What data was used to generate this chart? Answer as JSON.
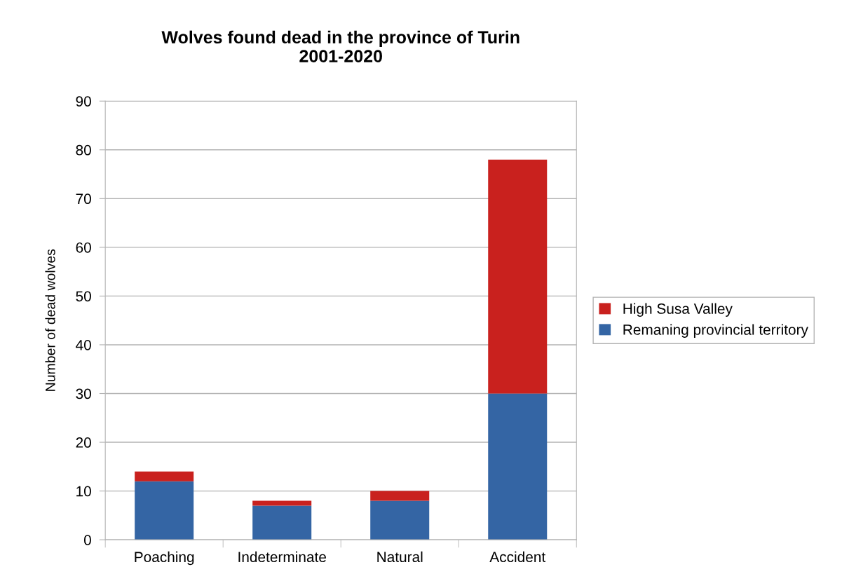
{
  "chart_data": {
    "type": "bar",
    "stacked": true,
    "title": "Wolves found dead in the province of Turin\n2001-2020",
    "ylabel": "Number of dead wolves",
    "categories": [
      "Poaching",
      "Indeterminate",
      "Natural",
      "Accident"
    ],
    "series": [
      {
        "name": "Remaning provincial territory",
        "color": "#3465a4",
        "values": [
          12,
          7,
          8,
          30
        ]
      },
      {
        "name": "High Susa Valley",
        "color": "#c9211e",
        "values": [
          2,
          1,
          2,
          48
        ]
      }
    ],
    "ylim": [
      0,
      90
    ],
    "yticks": [
      0,
      10,
      20,
      30,
      40,
      50,
      60,
      70,
      80,
      90
    ],
    "grid": "y",
    "legend": "right"
  }
}
